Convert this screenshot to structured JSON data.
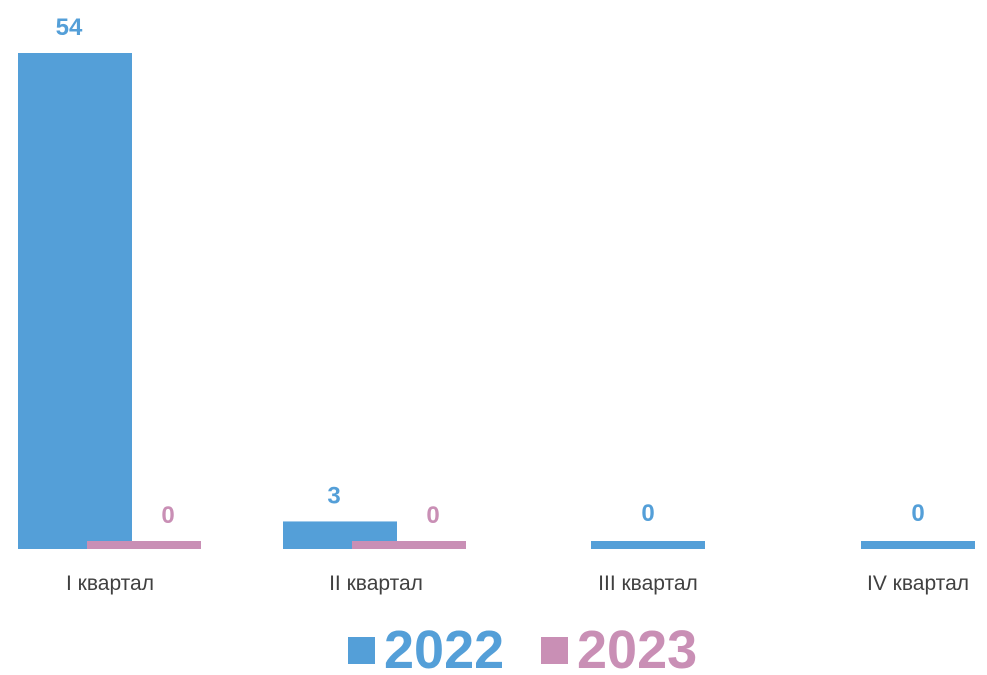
{
  "chart_data": {
    "type": "bar",
    "title": "",
    "xlabel": "",
    "ylabel": "",
    "categories": [
      "I квартал",
      "II квартал",
      "III квартал",
      "IV квартал"
    ],
    "series": [
      {
        "name": "2022",
        "values": [
          54,
          3,
          0,
          0
        ],
        "color": "#549FD8"
      },
      {
        "name": "2023",
        "values": [
          0,
          0,
          null,
          null
        ],
        "color": "#C98FB5"
      }
    ],
    "ylim": [
      0,
      54
    ],
    "grid": false,
    "legend_position": "bottom-center"
  }
}
